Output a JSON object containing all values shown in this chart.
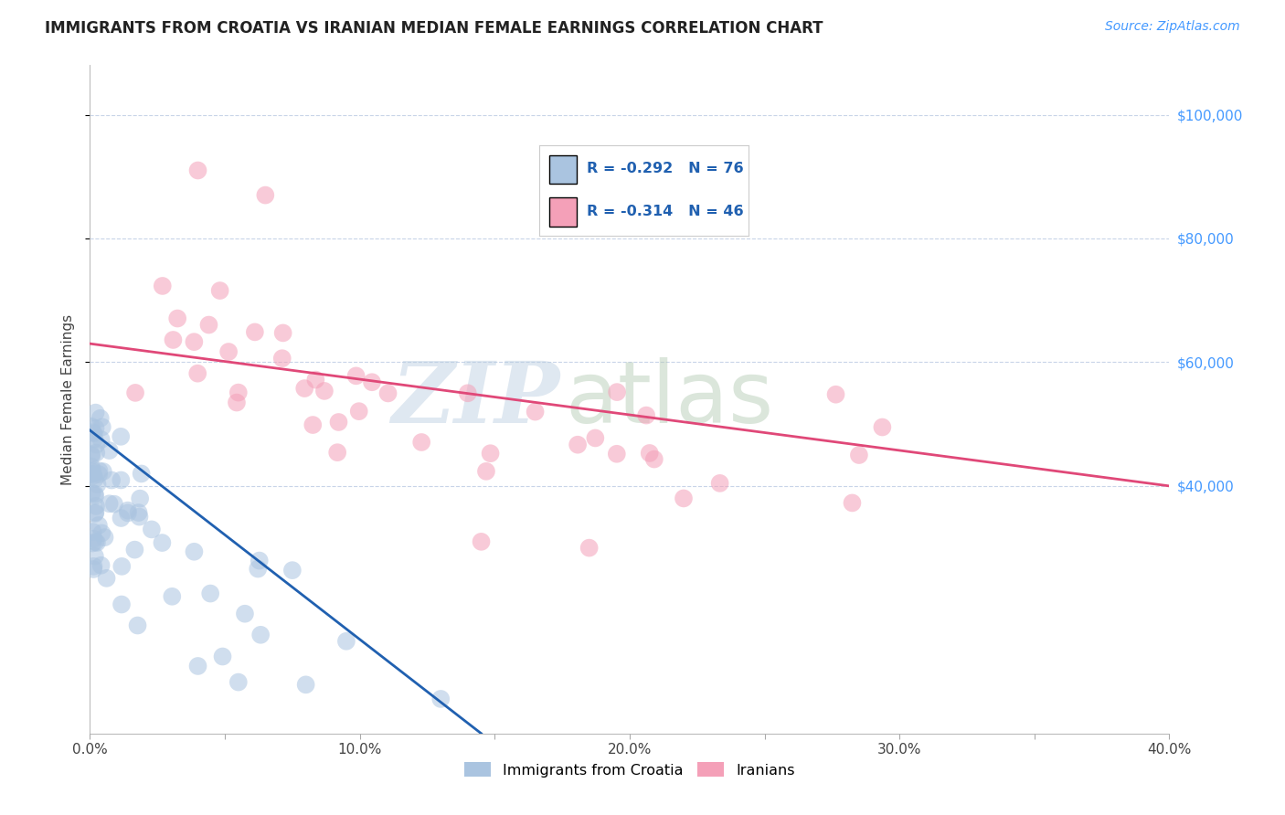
{
  "title": "IMMIGRANTS FROM CROATIA VS IRANIAN MEDIAN FEMALE EARNINGS CORRELATION CHART",
  "source": "Source: ZipAtlas.com",
  "ylabel": "Median Female Earnings",
  "xlim": [
    0.0,
    0.4
  ],
  "ylim": [
    0,
    108000
  ],
  "yticks": [
    40000,
    60000,
    80000,
    100000
  ],
  "ytick_labels": [
    "$40,000",
    "$60,000",
    "$80,000",
    "$100,000"
  ],
  "xticks": [
    0.0,
    0.05,
    0.1,
    0.15,
    0.2,
    0.25,
    0.3,
    0.35,
    0.4
  ],
  "xtick_labels": [
    "0.0%",
    "",
    "10.0%",
    "",
    "20.0%",
    "",
    "30.0%",
    "",
    "40.0%"
  ],
  "croatia_color": "#aac4e0",
  "iran_color": "#f4a0b8",
  "croatia_line_color": "#2060b0",
  "iran_line_color": "#e04878",
  "croatia_R": -0.292,
  "croatia_N": 76,
  "iran_R": -0.314,
  "iran_N": 46,
  "watermark_zip": "ZIP",
  "watermark_atlas": "atlas",
  "watermark_color_zip": "#b8cce0",
  "watermark_color_atlas": "#b0c8b0",
  "background_color": "#ffffff",
  "grid_color": "#c8d4e8",
  "right_tick_color": "#4499ff",
  "title_color": "#222222",
  "source_color": "#4499ff",
  "legend_border_color": "#cccccc",
  "legend_text_color": "#2060b0",
  "bottom_legend_label_croatia": "Immigrants from Croatia",
  "bottom_legend_label_iran": "Iranians",
  "croatia_line_x0": 0.0,
  "croatia_line_y0": 49000,
  "croatia_line_x1": 0.145,
  "croatia_line_y1": 0,
  "iran_line_x0": 0.0,
  "iran_line_y0": 63000,
  "iran_line_x1": 0.4,
  "iran_line_y1": 40000
}
